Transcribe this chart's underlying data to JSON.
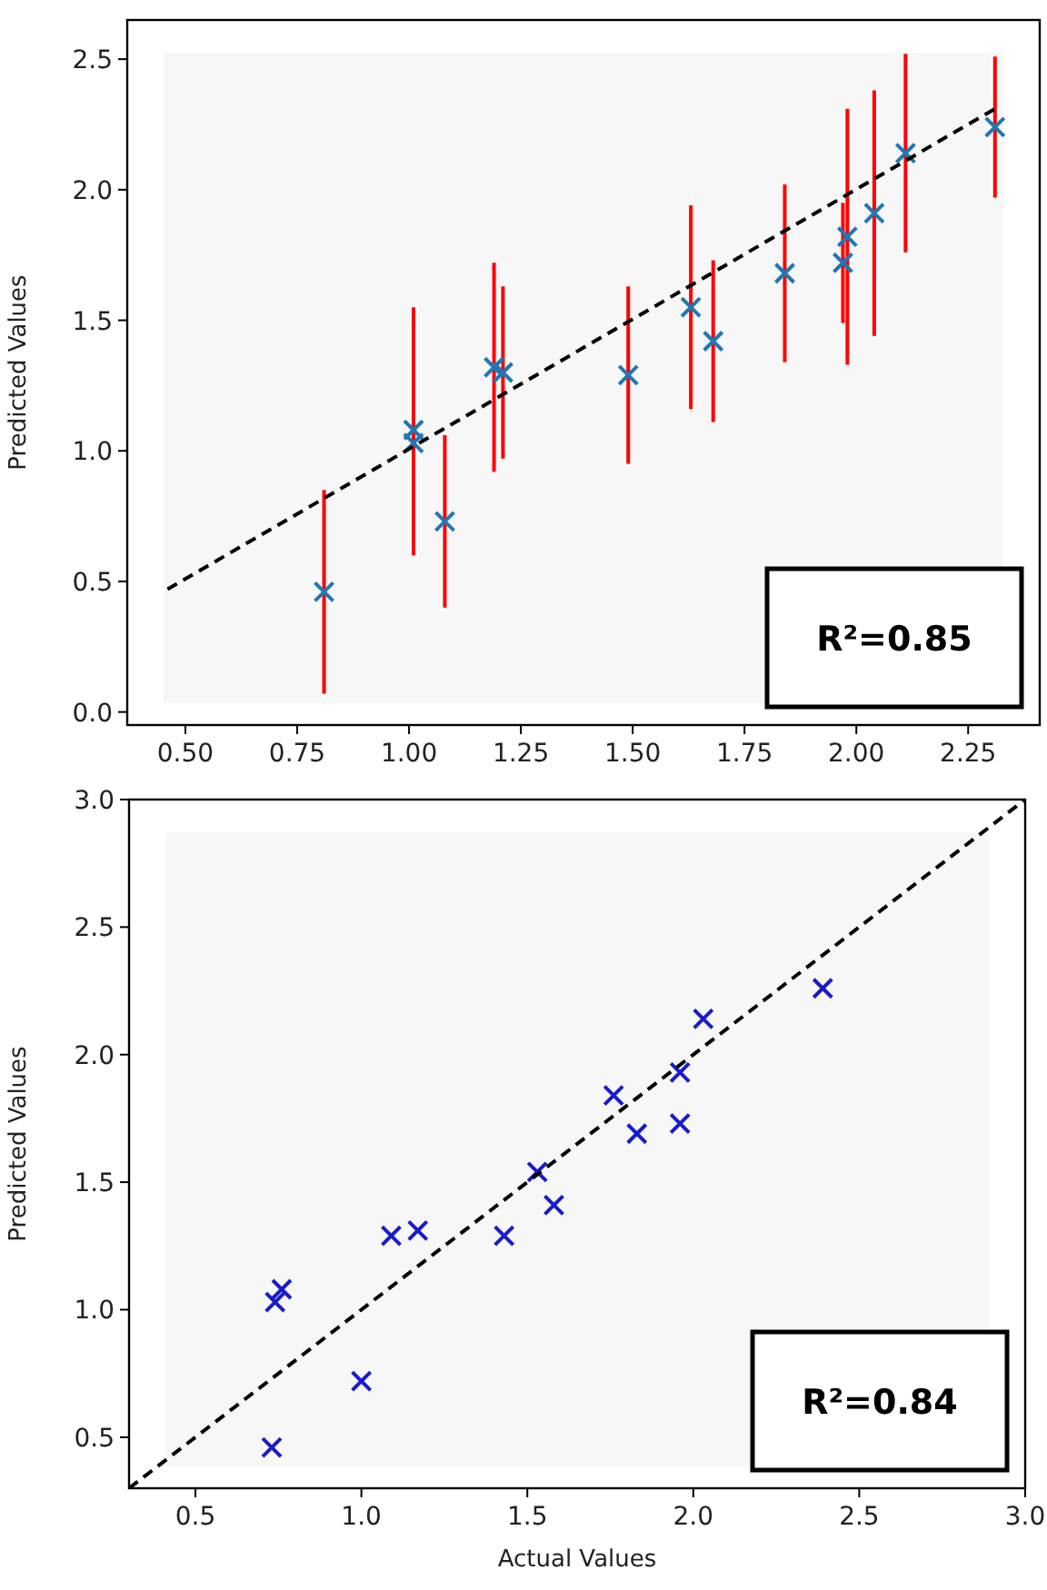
{
  "chart_data": [
    {
      "type": "scatter",
      "ylabel": "Predicted Values",
      "xlim": [
        0.37,
        2.41
      ],
      "ylim": [
        -0.05,
        2.65
      ],
      "xticks": [
        {
          "value": 0.5,
          "label": "0.50"
        },
        {
          "value": 0.75,
          "label": "0.75"
        },
        {
          "value": 1,
          "label": "1.00"
        },
        {
          "value": 1.25,
          "label": "1.25"
        },
        {
          "value": 1.5,
          "label": "1.50"
        },
        {
          "value": 1.75,
          "label": "1.75"
        },
        {
          "value": 2,
          "label": "2.00"
        },
        {
          "value": 2.25,
          "label": "2.25"
        }
      ],
      "yticks": [
        {
          "value": 0,
          "label": "0.0"
        },
        {
          "value": 0.5,
          "label": "0.5"
        },
        {
          "value": 1,
          "label": "1.0"
        },
        {
          "value": 1.5,
          "label": "1.5"
        },
        {
          "value": 2,
          "label": "2.0"
        },
        {
          "value": 2.5,
          "label": "2.5"
        }
      ],
      "annotations": [
        "R²=0.85"
      ],
      "series": [
        {
          "marker": "cross",
          "color": "#1f77b4",
          "x": [
            0.81,
            1.01,
            1.01,
            1.08,
            1.19,
            1.21,
            1.49,
            1.63,
            1.68,
            1.84,
            1.97,
            1.98,
            2.04,
            2.11,
            2.31
          ],
          "values": [
            0.46,
            1.03,
            1.08,
            0.73,
            1.32,
            1.3,
            1.29,
            1.55,
            1.42,
            1.68,
            1.72,
            1.82,
            1.91,
            2.14,
            2.24
          ],
          "errors": [
            0.39,
            0.43,
            0.47,
            0.33,
            0.4,
            0.33,
            0.34,
            0.39,
            0.31,
            0.34,
            0.23,
            0.49,
            0.47,
            0.38,
            0.27
          ]
        },
        {
          "type": "line",
          "color": "#000000",
          "line_style": "dashed",
          "x": [
            0.46,
            2.31
          ],
          "values": [
            0.47,
            2.31
          ]
        }
      ]
    },
    {
      "type": "scatter",
      "xlabel": "Actual Values",
      "ylabel": "Predicted Values",
      "xlim": [
        0.3,
        3.0
      ],
      "ylim": [
        0.3,
        3.0
      ],
      "xticks": [
        0.5,
        {
          "value": 1,
          "label": "1.0"
        },
        1.5,
        {
          "value": 2,
          "label": "2.0"
        },
        2.5,
        {
          "value": 3,
          "label": "3.0"
        }
      ],
      "yticks": [
        0.5,
        {
          "value": 1,
          "label": "1.0"
        },
        1.5,
        {
          "value": 2,
          "label": "2.0"
        },
        2.5,
        {
          "value": 3,
          "label": "3.0"
        }
      ],
      "annotations": [
        "R²=0.84"
      ],
      "series": [
        {
          "marker": "cross",
          "color": "#1a1acc",
          "x": [
            0.73,
            0.74,
            0.76,
            1.0,
            1.09,
            1.17,
            1.43,
            1.53,
            1.58,
            1.76,
            1.83,
            1.96,
            1.96,
            2.03,
            2.39
          ],
          "values": [
            0.46,
            1.03,
            1.08,
            0.72,
            1.29,
            1.31,
            1.29,
            1.54,
            1.41,
            1.84,
            1.69,
            1.93,
            1.73,
            2.14,
            2.26
          ]
        },
        {
          "type": "line",
          "color": "#000000",
          "line_style": "dashed",
          "x": [
            0.3,
            3.0
          ],
          "values": [
            0.3,
            3.0
          ]
        }
      ]
    }
  ]
}
